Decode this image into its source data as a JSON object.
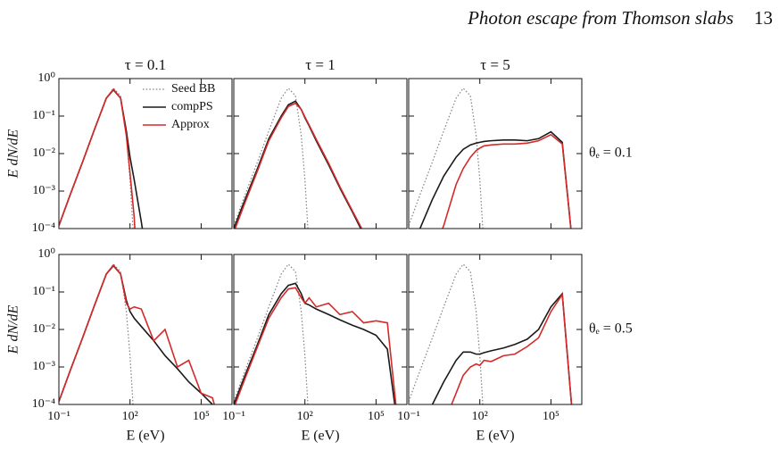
{
  "header": {
    "title": "Photon escape from Thomson slabs",
    "page": "13"
  },
  "chart_data": [
    {
      "type": "line",
      "title": "τ = 0.1",
      "ylabel": "E dN/dE",
      "xscale": "log",
      "yscale": "log",
      "xlim": [
        0.1,
        2000000
      ],
      "ylim": [
        0.0001,
        1
      ],
      "xticks": [
        0.1,
        100,
        100000
      ],
      "yticks": [
        {
          "value": 1,
          "label": "10⁰"
        },
        {
          "value": 0.1,
          "label": "10⁻¹"
        },
        {
          "value": 0.01,
          "label": "10⁻²"
        },
        {
          "value": 0.001,
          "label": "10⁻³"
        },
        {
          "value": 0.0001,
          "label": "10⁻⁴"
        }
      ],
      "legend": "upper right",
      "x": [
        0.1,
        0.3,
        1,
        3,
        10,
        20,
        40,
        70,
        100,
        150,
        300,
        1000,
        3000,
        10000,
        30000,
        100000,
        300000,
        1000000,
        2000000
      ],
      "series": [
        {
          "name": "Seed BB",
          "color": "#808080",
          "linestyle": "dotted",
          "values": [
            0.00012,
            0.0008,
            0.006,
            0.04,
            0.3,
            0.55,
            0.35,
            0.03,
            0.002,
            3e-05,
            null,
            null,
            null,
            null,
            null,
            null,
            null,
            null,
            null
          ]
        },
        {
          "name": "compPS",
          "color": "#1a1a1a",
          "linestyle": "solid",
          "values": [
            0.00012,
            0.0008,
            0.006,
            0.04,
            0.3,
            0.5,
            0.3,
            0.04,
            0.008,
            0.002,
            0.00015,
            1e-06,
            null,
            null,
            null,
            null,
            null,
            null,
            null
          ]
        },
        {
          "name": "Approx",
          "color": "#d42a2a",
          "linestyle": "solid",
          "values": [
            0.00012,
            0.0008,
            0.006,
            0.04,
            0.3,
            0.52,
            0.3,
            0.03,
            0.003,
            0.0002,
            1e-07,
            null,
            null,
            null,
            null,
            null,
            null,
            null,
            null
          ]
        }
      ]
    },
    {
      "type": "line",
      "title": "τ = 1",
      "xscale": "log",
      "yscale": "log",
      "xlim": [
        0.1,
        2000000
      ],
      "ylim": [
        0.0001,
        1
      ],
      "xticks": [
        0.1,
        100,
        100000
      ],
      "yticks": [
        1,
        0.1,
        0.01,
        0.001,
        0.0001
      ],
      "x": [
        0.1,
        0.3,
        1,
        3,
        10,
        20,
        40,
        70,
        100,
        150,
        300,
        1000,
        3000,
        10000,
        30000,
        100000,
        300000,
        1000000,
        2000000
      ],
      "series": [
        {
          "color": "#808080",
          "linestyle": "dotted",
          "values": [
            0.00012,
            0.0008,
            0.006,
            0.04,
            0.3,
            0.55,
            0.35,
            0.03,
            0.002,
            3e-05,
            null,
            null,
            null,
            null,
            null,
            null,
            null,
            null,
            null
          ]
        },
        {
          "color": "#1a1a1a",
          "linestyle": "solid",
          "values": [
            0.0001,
            0.0006,
            0.004,
            0.025,
            0.1,
            0.2,
            0.25,
            0.15,
            0.09,
            0.055,
            0.022,
            0.005,
            0.0012,
            0.00028,
            7e-05,
            null,
            null,
            null,
            null
          ]
        },
        {
          "color": "#d42a2a",
          "linestyle": "solid",
          "values": [
            8e-05,
            0.0005,
            0.0035,
            0.022,
            0.09,
            0.18,
            0.22,
            0.15,
            0.095,
            0.058,
            0.024,
            0.0055,
            0.0013,
            0.0003,
            8e-05,
            null,
            null,
            null,
            null
          ]
        }
      ]
    },
    {
      "type": "line",
      "title": "τ = 5",
      "annotation": "θₑ = 0.1",
      "xscale": "log",
      "yscale": "log",
      "xlim": [
        0.1,
        2000000
      ],
      "ylim": [
        0.0001,
        1
      ],
      "xticks": [
        0.1,
        100,
        100000
      ],
      "yticks": [
        1,
        0.1,
        0.01,
        0.001,
        0.0001
      ],
      "x": [
        0.1,
        0.3,
        1,
        3,
        10,
        20,
        40,
        70,
        100,
        150,
        300,
        1000,
        3000,
        10000,
        30000,
        100000,
        300000,
        1000000,
        2000000
      ],
      "series": [
        {
          "color": "#808080",
          "linestyle": "dotted",
          "values": [
            0.00012,
            0.0008,
            0.006,
            0.04,
            0.3,
            0.55,
            0.35,
            0.03,
            0.002,
            3e-05,
            null,
            null,
            null,
            null,
            null,
            null,
            null,
            null,
            null
          ]
        },
        {
          "color": "#1a1a1a",
          "linestyle": "solid",
          "values": [
            null,
            0.0001,
            0.0006,
            0.0025,
            0.008,
            0.013,
            0.017,
            0.019,
            0.02,
            0.021,
            0.022,
            0.023,
            0.023,
            0.022,
            0.025,
            0.038,
            0.02,
            1e-05,
            null
          ]
        },
        {
          "color": "#d42a2a",
          "linestyle": "solid",
          "values": [
            null,
            null,
            2e-05,
            0.00012,
            0.0015,
            0.004,
            0.008,
            0.012,
            0.014,
            0.016,
            0.017,
            0.018,
            0.018,
            0.019,
            0.022,
            0.032,
            0.018,
            1e-05,
            null
          ]
        }
      ]
    },
    {
      "type": "line",
      "ylabel": "E dN/dE",
      "xlabel": "E (eV)",
      "xscale": "log",
      "yscale": "log",
      "xlim": [
        0.1,
        2000000
      ],
      "ylim": [
        0.0001,
        1
      ],
      "xticks": [
        {
          "value": 0.1,
          "label": "10⁻¹"
        },
        {
          "value": 100,
          "label": "10²"
        },
        {
          "value": 100000,
          "label": "10⁵"
        }
      ],
      "yticks": [
        {
          "value": 1,
          "label": "10⁰"
        },
        {
          "value": 0.1,
          "label": "10⁻¹"
        },
        {
          "value": 0.01,
          "label": "10⁻²"
        },
        {
          "value": 0.001,
          "label": "10⁻³"
        },
        {
          "value": 0.0001,
          "label": "10⁻⁴"
        }
      ],
      "x": [
        0.1,
        0.3,
        1,
        3,
        10,
        20,
        40,
        70,
        100,
        150,
        300,
        1000,
        3000,
        10000,
        30000,
        100000,
        300000,
        1000000,
        2000000
      ],
      "series": [
        {
          "color": "#808080",
          "linestyle": "dotted",
          "values": [
            0.00012,
            0.0008,
            0.006,
            0.04,
            0.3,
            0.55,
            0.35,
            0.03,
            0.002,
            3e-05,
            null,
            null,
            null,
            null,
            null,
            null,
            null,
            null,
            null
          ]
        },
        {
          "color": "#1a1a1a",
          "linestyle": "solid",
          "values": [
            0.00012,
            0.0008,
            0.006,
            0.04,
            0.3,
            0.5,
            0.3,
            0.06,
            0.03,
            0.02,
            0.012,
            0.005,
            0.002,
            0.0009,
            0.0004,
            0.0002,
            0.0001,
            3e-05,
            null
          ]
        },
        {
          "color": "#d42a2a",
          "linestyle": "solid",
          "values": [
            0.00012,
            0.0008,
            0.006,
            0.04,
            0.3,
            0.52,
            0.3,
            0.05,
            0.035,
            0.04,
            0.035,
            0.005,
            0.01,
            0.001,
            0.0015,
            0.0002,
            0.00015,
            1e-05,
            null
          ]
        }
      ]
    },
    {
      "type": "line",
      "xlabel": "E (eV)",
      "xscale": "log",
      "yscale": "log",
      "xlim": [
        0.1,
        2000000
      ],
      "ylim": [
        0.0001,
        1
      ],
      "xticks": [
        {
          "value": 0.1,
          "label": "10⁻¹"
        },
        {
          "value": 100,
          "label": "10²"
        },
        {
          "value": 100000,
          "label": "10⁵"
        }
      ],
      "yticks": [
        1,
        0.1,
        0.01,
        0.001,
        0.0001
      ],
      "x": [
        0.1,
        0.3,
        1,
        3,
        10,
        20,
        40,
        70,
        100,
        150,
        300,
        1000,
        3000,
        10000,
        30000,
        100000,
        300000,
        1000000,
        2000000
      ],
      "series": [
        {
          "color": "#808080",
          "linestyle": "dotted",
          "values": [
            0.00012,
            0.0008,
            0.006,
            0.04,
            0.3,
            0.55,
            0.35,
            0.03,
            0.002,
            3e-05,
            null,
            null,
            null,
            null,
            null,
            null,
            null,
            null,
            null
          ]
        },
        {
          "color": "#1a1a1a",
          "linestyle": "solid",
          "values": [
            0.0001,
            0.0006,
            0.004,
            0.025,
            0.09,
            0.15,
            0.17,
            0.09,
            0.05,
            0.045,
            0.035,
            0.025,
            0.018,
            0.013,
            0.01,
            0.007,
            0.003,
            1e-05,
            null
          ]
        },
        {
          "color": "#d42a2a",
          "linestyle": "solid",
          "values": [
            8e-05,
            0.0005,
            0.0035,
            0.02,
            0.07,
            0.12,
            0.13,
            0.07,
            0.05,
            0.07,
            0.04,
            0.05,
            0.025,
            0.03,
            0.015,
            0.017,
            0.015,
            1e-05,
            null
          ]
        }
      ]
    },
    {
      "type": "line",
      "xlabel": "E (eV)",
      "annotation": "θₑ = 0.5",
      "xscale": "log",
      "yscale": "log",
      "xlim": [
        0.1,
        2000000
      ],
      "ylim": [
        0.0001,
        1
      ],
      "xticks": [
        {
          "value": 0.1,
          "label": "10⁻¹"
        },
        {
          "value": 100,
          "label": "10²"
        },
        {
          "value": 100000,
          "label": "10⁵"
        }
      ],
      "yticks": [
        1,
        0.1,
        0.01,
        0.001,
        0.0001
      ],
      "x": [
        0.1,
        0.3,
        1,
        3,
        10,
        20,
        40,
        70,
        100,
        150,
        300,
        1000,
        3000,
        10000,
        30000,
        100000,
        300000,
        1000000,
        2000000
      ],
      "series": [
        {
          "color": "#808080",
          "linestyle": "dotted",
          "values": [
            0.00012,
            0.0008,
            0.006,
            0.04,
            0.3,
            0.55,
            0.35,
            0.03,
            0.002,
            3e-05,
            null,
            null,
            null,
            null,
            null,
            null,
            null,
            null,
            null
          ]
        },
        {
          "color": "#1a1a1a",
          "linestyle": "solid",
          "values": [
            null,
            null,
            0.0001,
            0.0004,
            0.0015,
            0.0025,
            0.0025,
            0.0022,
            0.0022,
            0.0024,
            0.0027,
            0.0032,
            0.004,
            0.0055,
            0.01,
            0.04,
            0.09,
            1e-05,
            null
          ]
        },
        {
          "color": "#d42a2a",
          "linestyle": "solid",
          "values": [
            null,
            null,
            null,
            3e-05,
            0.0002,
            0.0006,
            0.001,
            0.0012,
            0.0011,
            0.0015,
            0.0014,
            0.002,
            0.0022,
            0.0035,
            0.006,
            0.03,
            0.085,
            1e-05,
            null
          ]
        }
      ]
    }
  ]
}
